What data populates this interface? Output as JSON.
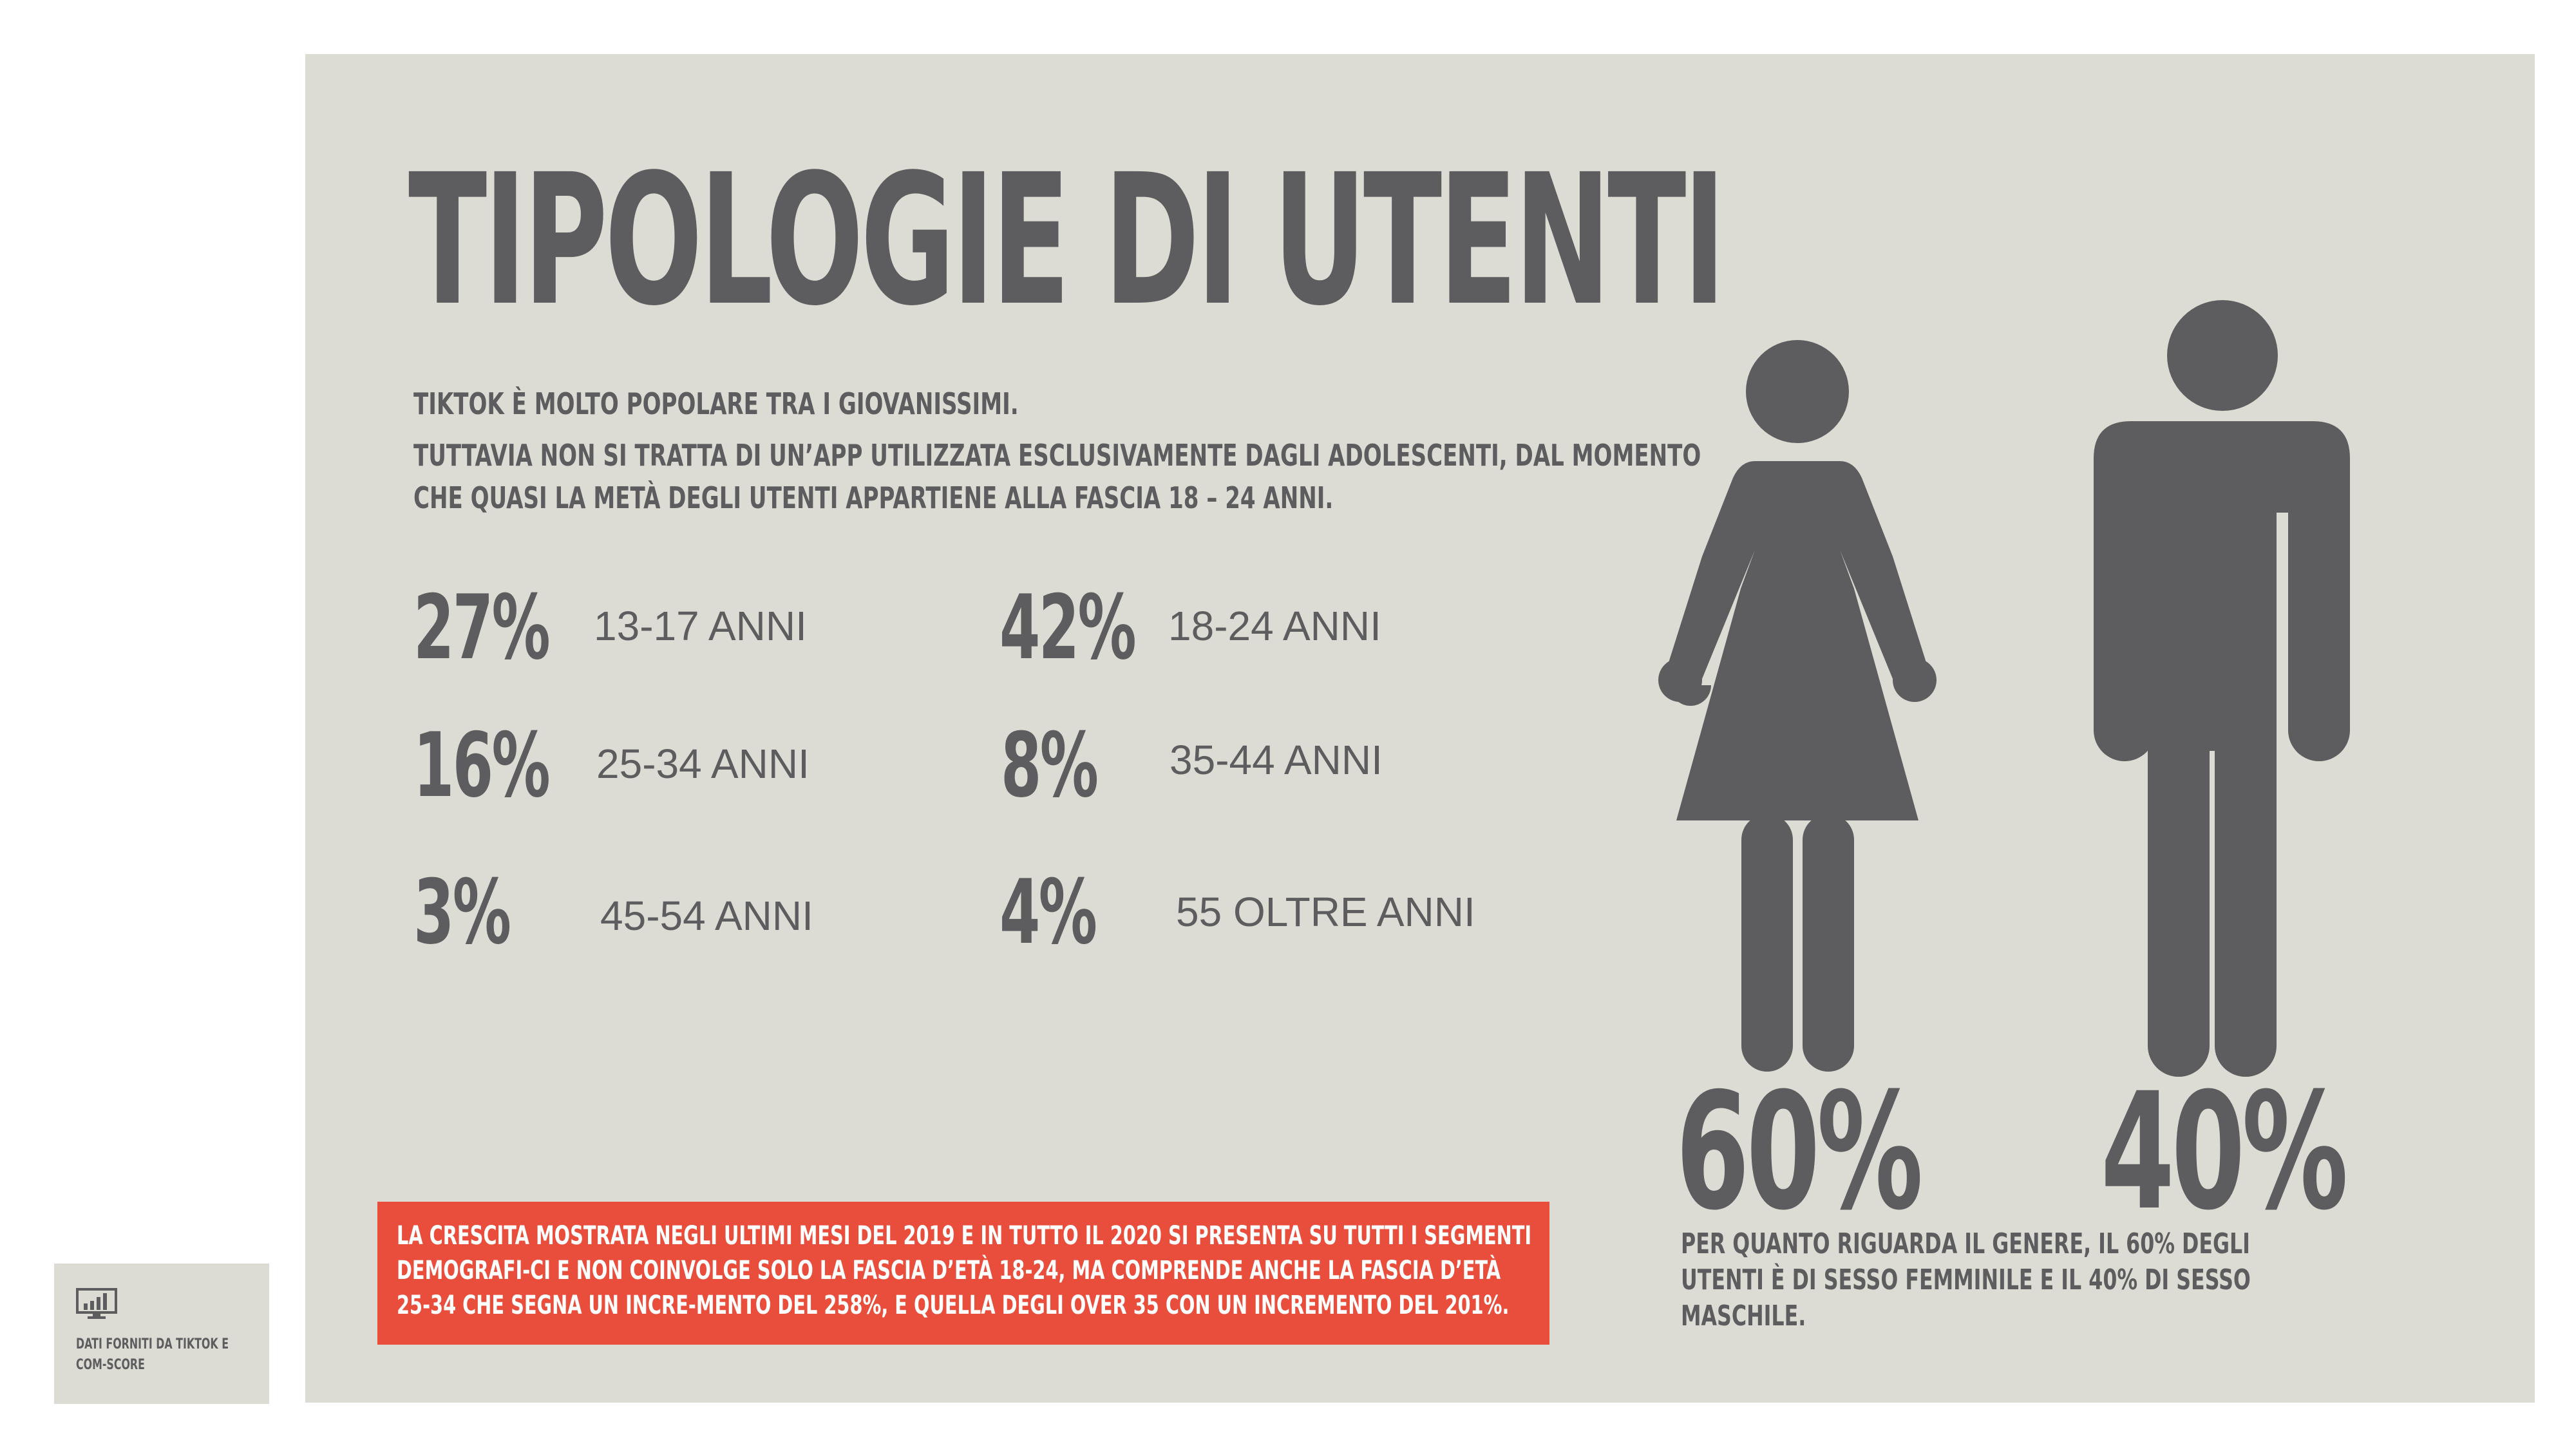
{
  "slide": {
    "title": "TIPOLOGIE DI UTENTI",
    "intro_line1": "TIKTOK È MOLTO POPOLARE TRA I GIOVANISSIMI.",
    "intro_line2": "TUTTAVIA NON SI TRATTA DI UN’APP UTILIZZATA ESCLUSIVAMENTE DAGLI ADOLESCENTI, DAL MOMENTO",
    "intro_line3": "CHE QUASI LA METÀ DEGLI UTENTI APPARTIENE ALLA FASCIA 18 – 24 ANNI."
  },
  "age_groups": [
    {
      "percent": "27%",
      "label": "13-17 ANNI"
    },
    {
      "percent": "42%",
      "label": "18-24 ANNI"
    },
    {
      "percent": "16%",
      "label": "25-34 ANNI"
    },
    {
      "percent": "8%",
      "label": "35-44 ANNI"
    },
    {
      "percent": "3%",
      "label": "45-54 ANNI"
    },
    {
      "percent": "4%",
      "label": "55 OLTRE ANNI"
    }
  ],
  "gender": {
    "female": {
      "percent": "60%",
      "icon": "woman-icon"
    },
    "male": {
      "percent": "40%",
      "icon": "man-icon"
    },
    "note": "PER QUANTO RIGUARDA IL GENERE, IL 60% DEGLI UTENTI È DI SESSO FEMMINILE E IL 40% DI SESSO MASCHILE."
  },
  "growth_note": "LA CRESCITA MOSTRATA NEGLI ULTIMI MESI DEL 2019 E IN TUTTO IL 2020 SI PRESENTA SU TUTTI I SEGMENTI DEMOGRAFI-CI E NON COINVOLGE SOLO LA FASCIA D’ETÀ 18-24, MA COMPRENDE ANCHE LA FASCIA D’ETÀ 25-34 CHE SEGNA UN INCRE-MENTO DEL 258%, E QUELLA DEGLI OVER 35 CON UN INCREMENTO DEL 201%.",
  "source": {
    "icon": "chart-monitor-icon",
    "text": "DATI FORNITI DA TIKTOK E COM-SCORE"
  },
  "colors": {
    "background": "#dcdcd4",
    "text": "#5d5d5f",
    "accent": "#e84e3b"
  }
}
